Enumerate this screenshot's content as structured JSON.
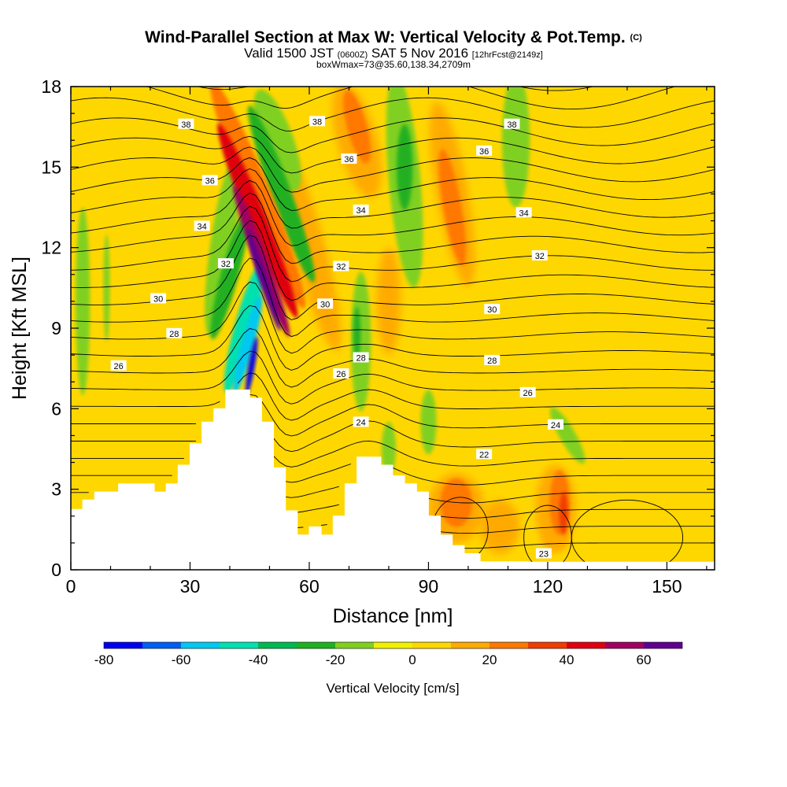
{
  "chart_data": {
    "type": "heatmap",
    "title": "Wind-Parallel Section at Max W: Vertical Velocity & Pot.Temp.",
    "title_mark": "(C)",
    "subtitle_main": "Valid 1500 JST",
    "subtitle_zulu": "(0600Z)",
    "subtitle_date": "SAT 5 Nov 2016",
    "subtitle_fcst": "[12hrFcst@2149z]",
    "subtitle2": "boxWmax=73@35.60,138.34,2709m",
    "xlabel": "Distance [nm]",
    "ylabel": "Height [Kft MSL]",
    "xlim": [
      0,
      162
    ],
    "ylim": [
      0,
      18
    ],
    "x_ticks": [
      "0",
      "30",
      "60",
      "90",
      "120",
      "150"
    ],
    "y_ticks": [
      "0",
      "3",
      "6",
      "9",
      "12",
      "15",
      "18"
    ],
    "colorbar": {
      "title": "Vertical Velocity [cm/s]",
      "tick_labels": [
        "-80",
        "-60",
        "-40",
        "-20",
        "0",
        "20",
        "40",
        "60"
      ],
      "levels": [
        -80,
        -70,
        -60,
        -50,
        -40,
        -30,
        -20,
        -10,
        0,
        10,
        20,
        30,
        40,
        50,
        60,
        70
      ],
      "colors": [
        "#0000f0",
        "#005ff0",
        "#00c8f0",
        "#00e0b0",
        "#00b850",
        "#20b020",
        "#80d020",
        "#f0f000",
        "#ffd700",
        "#ffaa00",
        "#ff7800",
        "#f03c00",
        "#e00010",
        "#a00060",
        "#600090"
      ]
    },
    "theta_contour_labels": [
      "38",
      "38",
      "38",
      "36",
      "36",
      "36",
      "34",
      "34",
      "34",
      "32",
      "32",
      "32",
      "30",
      "30",
      "30",
      "28",
      "28",
      "28",
      "26",
      "26",
      "26",
      "24",
      "24",
      "22",
      "23"
    ],
    "features": [
      {
        "kind": "updraft",
        "x_range": [
          43,
          55
        ],
        "z_range": [
          6,
          18
        ],
        "max": 73
      },
      {
        "kind": "downdraft",
        "x_range": [
          38,
          48
        ],
        "z_range": [
          6.5,
          11
        ],
        "min": -80
      },
      {
        "kind": "terrain_peak",
        "x": 46,
        "z": 6.7
      },
      {
        "kind": "terrain_peak",
        "x": 75,
        "z": 4.2
      }
    ]
  }
}
